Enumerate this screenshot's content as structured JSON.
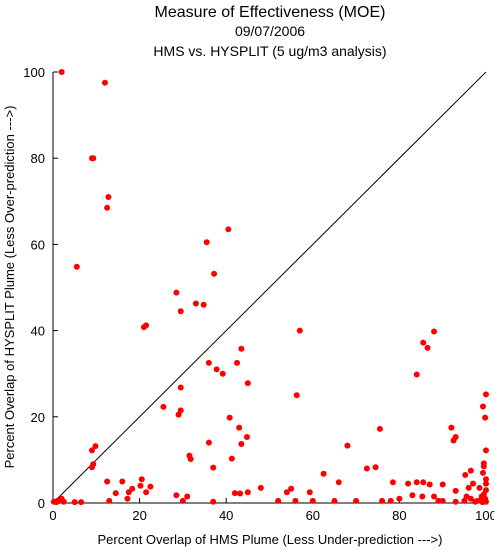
{
  "chart_data": {
    "type": "scatter",
    "title": "Measure of Effectiveness (MOE)",
    "date": "09/07/2006",
    "subtitle": "HMS vs. HYSPLIT  (5 ug/m3 analysis)",
    "xlabel": "Percent Overlap of HMS Plume (Less Under-prediction --->)",
    "ylabel": "Percent Overlap of HYSPLIT Plume (Less Over-prediction --->)",
    "xlim": [
      0,
      100
    ],
    "ylim": [
      0,
      100
    ],
    "x_ticks": [
      "0",
      "20",
      "40",
      "60",
      "80",
      "100"
    ],
    "y_ticks": [
      "0",
      "20",
      "40",
      "60",
      "80",
      "100"
    ],
    "grid": false,
    "reference_line": "y = x diagonal",
    "point_color": "#ff0000",
    "points": [
      [
        2,
        100
      ],
      [
        12,
        97.5
      ],
      [
        9,
        80
      ],
      [
        9.3,
        80
      ],
      [
        12.8,
        71
      ],
      [
        12.5,
        68.5
      ],
      [
        5.5,
        54.8
      ],
      [
        40.5,
        63.5
      ],
      [
        35.5,
        60.5
      ],
      [
        37.2,
        53.2
      ],
      [
        28.5,
        48.8
      ],
      [
        33,
        46.3
      ],
      [
        34.8,
        46
      ],
      [
        29.5,
        44.5
      ],
      [
        21.5,
        41.2
      ],
      [
        21,
        40.8
      ],
      [
        57,
        40
      ],
      [
        88,
        39.8
      ],
      [
        85.5,
        37.2
      ],
      [
        86.5,
        36
      ],
      [
        43.5,
        35.8
      ],
      [
        36,
        32.5
      ],
      [
        42.5,
        32.5
      ],
      [
        37.8,
        31
      ],
      [
        39.2,
        30
      ],
      [
        84,
        29.8
      ],
      [
        45,
        27.8
      ],
      [
        29.5,
        26.8
      ],
      [
        56.3,
        25
      ],
      [
        100,
        25.2
      ],
      [
        25.5,
        22.3
      ],
      [
        99.3,
        22.4
      ],
      [
        29.5,
        21.5
      ],
      [
        29,
        20.5
      ],
      [
        40.8,
        19.8
      ],
      [
        99.8,
        19.8
      ],
      [
        43,
        17.5
      ],
      [
        75.5,
        17.2
      ],
      [
        92,
        17.5
      ],
      [
        93,
        15.3
      ],
      [
        92.5,
        14.5
      ],
      [
        44.8,
        15.3
      ],
      [
        36,
        14
      ],
      [
        43.5,
        13.7
      ],
      [
        68,
        13.3
      ],
      [
        9.8,
        13.2
      ],
      [
        9,
        12.2
      ],
      [
        100,
        12.2
      ],
      [
        31.5,
        11
      ],
      [
        31.8,
        10.2
      ],
      [
        41.3,
        10.3
      ],
      [
        99.5,
        9.2
      ],
      [
        9.3,
        9
      ],
      [
        9,
        8.3
      ],
      [
        37,
        8.2
      ],
      [
        74.5,
        8.3
      ],
      [
        99.5,
        8.5
      ],
      [
        72.5,
        8
      ],
      [
        96.5,
        7.5
      ],
      [
        99.3,
        7
      ],
      [
        62.5,
        6.8
      ],
      [
        95.2,
        6.5
      ],
      [
        12.5,
        5
      ],
      [
        16,
        5
      ],
      [
        66,
        4.8
      ],
      [
        78.5,
        4.8
      ],
      [
        84,
        4.8
      ],
      [
        85.5,
        4.8
      ],
      [
        82,
        4.5
      ],
      [
        87,
        4.3
      ],
      [
        90,
        4.3
      ],
      [
        97,
        4.5
      ],
      [
        20.5,
        5.5
      ],
      [
        20.2,
        4
      ],
      [
        22.5,
        3.8
      ],
      [
        18.3,
        3.3
      ],
      [
        17.5,
        2.5
      ],
      [
        48,
        3.5
      ],
      [
        55,
        3.3
      ],
      [
        54,
        2.5
      ],
      [
        59.3,
        2.5
      ],
      [
        93,
        2.8
      ],
      [
        96,
        3.5
      ],
      [
        98.5,
        3.5
      ],
      [
        14.5,
        2.3
      ],
      [
        21.5,
        2.5
      ],
      [
        42,
        2.3
      ],
      [
        43.2,
        2.2
      ],
      [
        45,
        2.5
      ],
      [
        28.5,
        1.8
      ],
      [
        31,
        1.5
      ],
      [
        80,
        1
      ],
      [
        83,
        1.8
      ],
      [
        85.3,
        1.5
      ],
      [
        88,
        1.5
      ],
      [
        95.5,
        1.5
      ],
      [
        99,
        1.5
      ],
      [
        99.5,
        2
      ],
      [
        17.2,
        1
      ],
      [
        0.2,
        0.3
      ],
      [
        0.8,
        0.2
      ],
      [
        1,
        0.5
      ],
      [
        1.5,
        0.5
      ],
      [
        2,
        1
      ],
      [
        2.5,
        0.3
      ],
      [
        5,
        0.2
      ],
      [
        6.5,
        0.2
      ],
      [
        13,
        0.5
      ],
      [
        30,
        0.5
      ],
      [
        37,
        0.3
      ],
      [
        52,
        0.5
      ],
      [
        56,
        0.5
      ],
      [
        60,
        0.5
      ],
      [
        65,
        0.5
      ],
      [
        70,
        0.5
      ],
      [
        76,
        0.5
      ],
      [
        78,
        0.5
      ],
      [
        89,
        0.5
      ],
      [
        90,
        0.5
      ],
      [
        93,
        0.3
      ],
      [
        95,
        0.5
      ],
      [
        98,
        0.5
      ],
      [
        99,
        0.8
      ],
      [
        100,
        0.3
      ],
      [
        100,
        3
      ],
      [
        100,
        4.5
      ],
      [
        100,
        5.5
      ],
      [
        99.8,
        1
      ],
      [
        99.2,
        0.2
      ],
      [
        97.5,
        0.3
      ],
      [
        96.5,
        1
      ]
    ]
  }
}
